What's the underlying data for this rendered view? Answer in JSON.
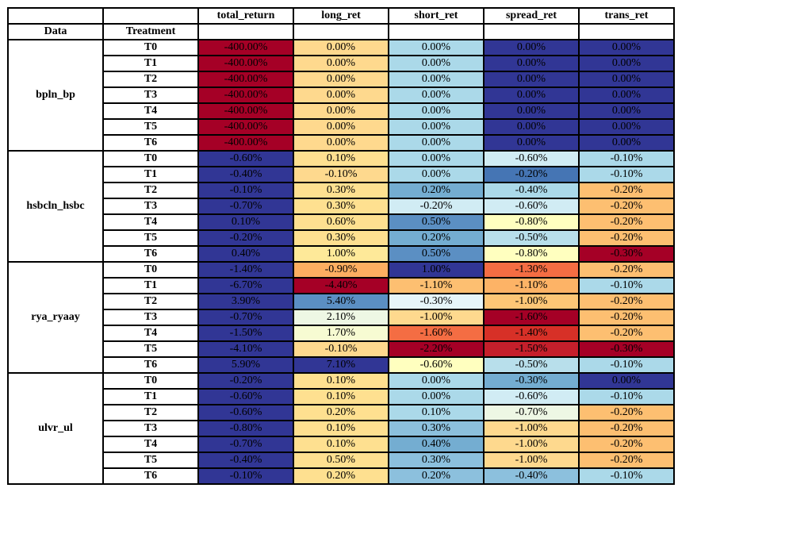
{
  "table": {
    "columns": [
      "total_return",
      "long_ret",
      "short_ret",
      "spread_ret",
      "trans_ret"
    ],
    "index_headers": [
      "Data",
      "Treatment"
    ],
    "groups": [
      {
        "name": "bpln_bp",
        "rows": [
          {
            "treatment": "T0",
            "values": [
              "-400.00%",
              "0.00%",
              "0.00%",
              "0.00%",
              "0.00%"
            ],
            "colors": [
              "#a50026",
              "#fed98e",
              "#abd9e9",
              "#313695",
              "#313695"
            ]
          },
          {
            "treatment": "T1",
            "values": [
              "-400.00%",
              "0.00%",
              "0.00%",
              "0.00%",
              "0.00%"
            ],
            "colors": [
              "#a50026",
              "#fed98e",
              "#abd9e9",
              "#313695",
              "#313695"
            ]
          },
          {
            "treatment": "T2",
            "values": [
              "-400.00%",
              "0.00%",
              "0.00%",
              "0.00%",
              "0.00%"
            ],
            "colors": [
              "#a50026",
              "#fed98e",
              "#abd9e9",
              "#313695",
              "#313695"
            ]
          },
          {
            "treatment": "T3",
            "values": [
              "-400.00%",
              "0.00%",
              "0.00%",
              "0.00%",
              "0.00%"
            ],
            "colors": [
              "#a50026",
              "#fed98e",
              "#abd9e9",
              "#313695",
              "#313695"
            ]
          },
          {
            "treatment": "T4",
            "values": [
              "-400.00%",
              "0.00%",
              "0.00%",
              "0.00%",
              "0.00%"
            ],
            "colors": [
              "#a50026",
              "#fed98e",
              "#abd9e9",
              "#313695",
              "#313695"
            ]
          },
          {
            "treatment": "T5",
            "values": [
              "-400.00%",
              "0.00%",
              "0.00%",
              "0.00%",
              "0.00%"
            ],
            "colors": [
              "#a50026",
              "#fed98e",
              "#abd9e9",
              "#313695",
              "#313695"
            ]
          },
          {
            "treatment": "T6",
            "values": [
              "-400.00%",
              "0.00%",
              "0.00%",
              "0.00%",
              "0.00%"
            ],
            "colors": [
              "#a50026",
              "#fed98e",
              "#abd9e9",
              "#313695",
              "#313695"
            ]
          }
        ]
      },
      {
        "name": "hsbcln_hsbc",
        "rows": [
          {
            "treatment": "T0",
            "values": [
              "-0.60%",
              "0.10%",
              "0.00%",
              "-0.60%",
              "-0.10%"
            ],
            "colors": [
              "#313695",
              "#fee090",
              "#abd9e9",
              "#d1ecf4",
              "#abd9e9"
            ]
          },
          {
            "treatment": "T1",
            "values": [
              "-0.40%",
              "-0.10%",
              "0.00%",
              "-0.20%",
              "-0.10%"
            ],
            "colors": [
              "#313695",
              "#fed98e",
              "#abd9e9",
              "#4575b4",
              "#abd9e9"
            ]
          },
          {
            "treatment": "T2",
            "values": [
              "-0.10%",
              "0.30%",
              "0.20%",
              "-0.40%",
              "-0.20%"
            ],
            "colors": [
              "#313695",
              "#fee090",
              "#74add1",
              "#abd9e9",
              "#fdbf71"
            ]
          },
          {
            "treatment": "T3",
            "values": [
              "-0.70%",
              "0.30%",
              "-0.20%",
              "-0.60%",
              "-0.20%"
            ],
            "colors": [
              "#313695",
              "#fee090",
              "#d1ecf4",
              "#d1ecf4",
              "#fdbf71"
            ]
          },
          {
            "treatment": "T4",
            "values": [
              "0.10%",
              "0.60%",
              "0.50%",
              "-0.80%",
              "-0.20%"
            ],
            "colors": [
              "#313695",
              "#fee090",
              "#5b8fc3",
              "#ffffbf",
              "#fdbf71"
            ]
          },
          {
            "treatment": "T5",
            "values": [
              "-0.20%",
              "0.30%",
              "0.20%",
              "-0.50%",
              "-0.20%"
            ],
            "colors": [
              "#313695",
              "#fee090",
              "#74add1",
              "#b8dfeb",
              "#fdbf71"
            ]
          },
          {
            "treatment": "T6",
            "values": [
              "0.40%",
              "1.00%",
              "0.50%",
              "-0.80%",
              "-0.30%"
            ],
            "colors": [
              "#313695",
              "#fee999",
              "#5b8fc3",
              "#ffffbf",
              "#a50026"
            ]
          }
        ]
      },
      {
        "name": "rya_ryaay",
        "rows": [
          {
            "treatment": "T0",
            "values": [
              "-1.40%",
              "-0.90%",
              "1.00%",
              "-1.30%",
              "-0.20%"
            ],
            "colors": [
              "#313695",
              "#fdae61",
              "#313695",
              "#f46d43",
              "#fdbf71"
            ]
          },
          {
            "treatment": "T1",
            "values": [
              "-6.70%",
              "-4.40%",
              "-1.10%",
              "-1.10%",
              "-0.10%"
            ],
            "colors": [
              "#313695",
              "#a50026",
              "#fdbf71",
              "#fdb366",
              "#abd9e9"
            ]
          },
          {
            "treatment": "T2",
            "values": [
              "3.90%",
              "5.40%",
              "-0.30%",
              "-1.00%",
              "-0.20%"
            ],
            "colors": [
              "#313695",
              "#5b8fc3",
              "#e6f5f9",
              "#fdc676",
              "#fdbf71"
            ]
          },
          {
            "treatment": "T3",
            "values": [
              "-0.70%",
              "2.10%",
              "-1.00%",
              "-1.60%",
              "-0.20%"
            ],
            "colors": [
              "#313695",
              "#eef7e4",
              "#fed98e",
              "#a50026",
              "#fdbf71"
            ]
          },
          {
            "treatment": "T4",
            "values": [
              "-1.50%",
              "1.70%",
              "-1.60%",
              "-1.40%",
              "-0.20%"
            ],
            "colors": [
              "#313695",
              "#f7fbd2",
              "#f46d43",
              "#d73027",
              "#fdbf71"
            ]
          },
          {
            "treatment": "T5",
            "values": [
              "-4.10%",
              "-0.10%",
              "-2.20%",
              "-1.50%",
              "-0.30%"
            ],
            "colors": [
              "#313695",
              "#fed98e",
              "#a50026",
              "#c51f2b",
              "#a50026"
            ]
          },
          {
            "treatment": "T6",
            "values": [
              "5.90%",
              "7.10%",
              "-0.60%",
              "-0.50%",
              "-0.10%"
            ],
            "colors": [
              "#313695",
              "#313695",
              "#ffffbf",
              "#b8dfeb",
              "#abd9e9"
            ]
          }
        ]
      },
      {
        "name": "ulvr_ul",
        "rows": [
          {
            "treatment": "T0",
            "values": [
              "-0.20%",
              "0.10%",
              "0.00%",
              "-0.30%",
              "0.00%"
            ],
            "colors": [
              "#313695",
              "#fee090",
              "#abd9e9",
              "#74add1",
              "#313695"
            ]
          },
          {
            "treatment": "T1",
            "values": [
              "-0.60%",
              "0.10%",
              "0.00%",
              "-0.60%",
              "-0.10%"
            ],
            "colors": [
              "#313695",
              "#fee090",
              "#abd9e9",
              "#d1ecf4",
              "#abd9e9"
            ]
          },
          {
            "treatment": "T2",
            "values": [
              "-0.60%",
              "0.20%",
              "0.10%",
              "-0.70%",
              "-0.20%"
            ],
            "colors": [
              "#313695",
              "#fee090",
              "#abd9e9",
              "#eef7e4",
              "#fdbf71"
            ]
          },
          {
            "treatment": "T3",
            "values": [
              "-0.80%",
              "0.10%",
              "0.30%",
              "-1.00%",
              "-0.20%"
            ],
            "colors": [
              "#313695",
              "#fee090",
              "#8cc0dd",
              "#fed98e",
              "#fdbf71"
            ]
          },
          {
            "treatment": "T4",
            "values": [
              "-0.70%",
              "0.10%",
              "0.40%",
              "-1.00%",
              "-0.20%"
            ],
            "colors": [
              "#313695",
              "#fee090",
              "#74add1",
              "#fed98e",
              "#fdbf71"
            ]
          },
          {
            "treatment": "T5",
            "values": [
              "-0.40%",
              "0.50%",
              "0.30%",
              "-1.00%",
              "-0.20%"
            ],
            "colors": [
              "#313695",
              "#fee090",
              "#8cc0dd",
              "#fed98e",
              "#fdbf71"
            ]
          },
          {
            "treatment": "T6",
            "values": [
              "-0.10%",
              "0.20%",
              "0.20%",
              "-0.40%",
              "-0.10%"
            ],
            "colors": [
              "#313695",
              "#fee090",
              "#8cc0dd",
              "#8cc0dd",
              "#abd9e9"
            ]
          }
        ]
      }
    ]
  }
}
